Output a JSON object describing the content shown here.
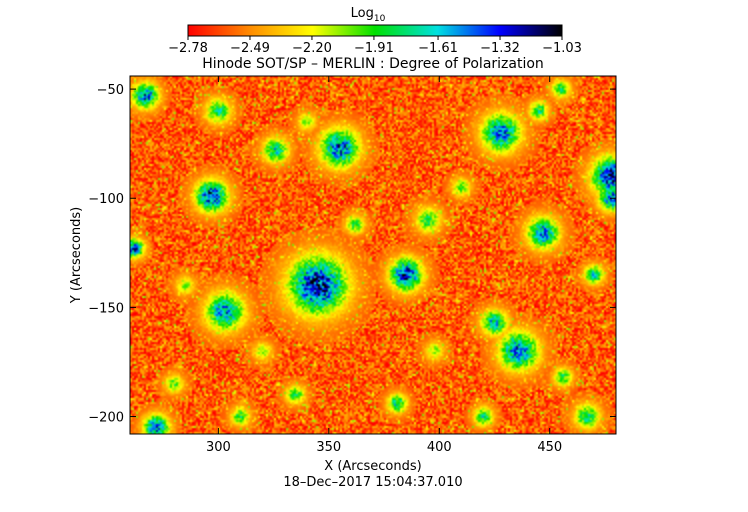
{
  "chart_data": {
    "type": "heatmap",
    "title": "Hinode SOT/SP – MERLIN : Degree of Polarization",
    "xlabel": "X (Arcseconds)",
    "ylabel": "Y (Arcseconds)",
    "timestamp": "18–Dec–2017 15:04:37.010",
    "xlim": [
      260,
      480
    ],
    "ylim": [
      -208,
      -44
    ],
    "x_ticks": [
      300,
      350,
      400,
      450
    ],
    "x_tick_labels": [
      "300",
      "350",
      "400",
      "450"
    ],
    "y_ticks": [
      -50,
      -100,
      -150,
      -200
    ],
    "y_tick_labels": [
      "−50",
      "−100",
      "−150",
      "−200"
    ],
    "colorbar": {
      "label": "Log",
      "label_subscript": "10",
      "range": [
        -2.78,
        -1.03
      ],
      "tick_values": [
        -2.78,
        -2.49,
        -2.2,
        -1.91,
        -1.61,
        -1.32,
        -1.03
      ],
      "tick_labels": [
        "−2.78",
        "−2.49",
        "−2.20",
        "−1.91",
        "−1.61",
        "−1.32",
        "−1.03"
      ],
      "colors": [
        "#ff0000",
        "#ff8c00",
        "#ffff00",
        "#00e000",
        "#00e0e0",
        "#0000ff",
        "#000000"
      ]
    },
    "background_value": -2.6,
    "features": [
      {
        "x": 297,
        "y": -99,
        "size": 5,
        "peak": -1.2
      },
      {
        "x": 345,
        "y": -140,
        "size": 9,
        "peak": -1.1
      },
      {
        "x": 385,
        "y": -135,
        "size": 5,
        "peak": -1.15
      },
      {
        "x": 355,
        "y": -77,
        "size": 6,
        "peak": -1.3
      },
      {
        "x": 326,
        "y": -78,
        "size": 4,
        "peak": -1.6
      },
      {
        "x": 428,
        "y": -70,
        "size": 6,
        "peak": -1.35
      },
      {
        "x": 445,
        "y": -60,
        "size": 3,
        "peak": -1.7
      },
      {
        "x": 478,
        "y": -90,
        "size": 6,
        "peak": -1.1
      },
      {
        "x": 478,
        "y": -100,
        "size": 4,
        "peak": -1.3
      },
      {
        "x": 267,
        "y": -53,
        "size": 4,
        "peak": -1.3
      },
      {
        "x": 262,
        "y": -123,
        "size": 3,
        "peak": -1.25
      },
      {
        "x": 303,
        "y": -152,
        "size": 6,
        "peak": -1.4
      },
      {
        "x": 447,
        "y": -116,
        "size": 5,
        "peak": -1.4
      },
      {
        "x": 436,
        "y": -170,
        "size": 6,
        "peak": -1.3
      },
      {
        "x": 425,
        "y": -157,
        "size": 4,
        "peak": -1.5
      },
      {
        "x": 272,
        "y": -205,
        "size": 4,
        "peak": -1.3
      },
      {
        "x": 300,
        "y": -60,
        "size": 4,
        "peak": -1.7
      },
      {
        "x": 362,
        "y": -112,
        "size": 3,
        "peak": -1.8
      },
      {
        "x": 395,
        "y": -110,
        "size": 4,
        "peak": -1.8
      },
      {
        "x": 410,
        "y": -95,
        "size": 3,
        "peak": -1.9
      },
      {
        "x": 335,
        "y": -190,
        "size": 3,
        "peak": -1.8
      },
      {
        "x": 381,
        "y": -194,
        "size": 3,
        "peak": -1.6
      },
      {
        "x": 420,
        "y": -200,
        "size": 3,
        "peak": -1.7
      },
      {
        "x": 456,
        "y": -182,
        "size": 3,
        "peak": -1.8
      },
      {
        "x": 467,
        "y": -200,
        "size": 4,
        "peak": -1.7
      },
      {
        "x": 470,
        "y": -135,
        "size": 3,
        "peak": -1.6
      },
      {
        "x": 280,
        "y": -185,
        "size": 3,
        "peak": -1.9
      },
      {
        "x": 310,
        "y": -200,
        "size": 3,
        "peak": -1.8
      },
      {
        "x": 320,
        "y": -170,
        "size": 3,
        "peak": -2.0
      },
      {
        "x": 455,
        "y": -50,
        "size": 3,
        "peak": -1.8
      },
      {
        "x": 340,
        "y": -65,
        "size": 3,
        "peak": -2.0
      },
      {
        "x": 398,
        "y": -170,
        "size": 3,
        "peak": -2.0
      },
      {
        "x": 285,
        "y": -140,
        "size": 3,
        "peak": -2.0
      }
    ]
  }
}
